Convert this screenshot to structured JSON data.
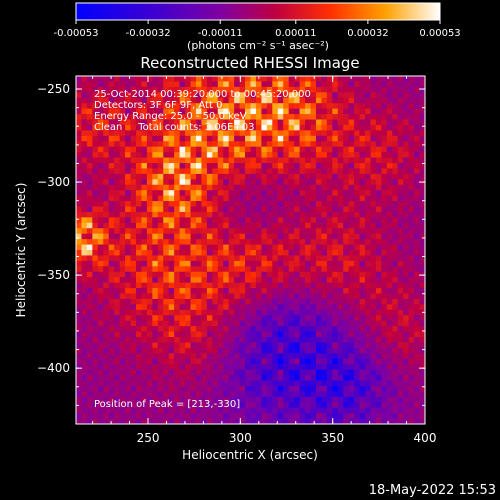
{
  "colorbar": {
    "tick_labels": [
      "-0.00053",
      "-0.00032",
      "-0.00011",
      "0.00011",
      "0.00032",
      "0.00053"
    ],
    "unit_label": "(photons cm⁻² s⁻¹ asec⁻²)",
    "range": [
      -0.00053,
      0.00053
    ]
  },
  "chart_data": {
    "type": "heatmap",
    "title": "Reconstructed RHESSI Image",
    "xlabel": "Heliocentric X (arcsec)",
    "ylabel": "Heliocentric Y (arcsec)",
    "xlim": [
      211,
      400
    ],
    "ylim": [
      -430,
      -243
    ],
    "x_ticks": [
      250,
      300,
      350,
      400
    ],
    "y_ticks": [
      -250,
      -300,
      -350,
      -400
    ],
    "x_tick_labels": [
      "250",
      "300",
      "350",
      "400"
    ],
    "y_tick_labels": [
      "−250",
      "−300",
      "−350",
      "−400"
    ],
    "peak": [
      213,
      -330
    ],
    "annotations": [
      "25-Oct-2014 00:39:20.000 to 00:45:20.000",
      "Detectors: 3F 6F 9F, Att 0",
      "Energy Range: 25.0 - 50.0 keV",
      "Clean     Total counts: 3.06E+03"
    ],
    "peak_label": "Position of Peak = [213,-330]",
    "grid": false
  },
  "footer": {
    "timestamp": "18-May-2022 15:53"
  }
}
